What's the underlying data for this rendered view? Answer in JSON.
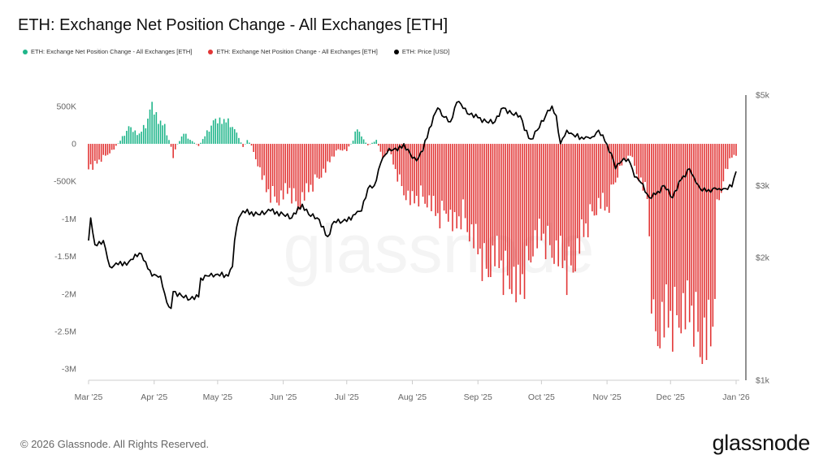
{
  "header": {
    "title": "ETH: Exchange Net Position Change - All Exchanges [ETH]"
  },
  "footer": {
    "copyright": "© 2026 Glassnode. All Rights Reserved.",
    "brand": "glassnode",
    "watermark": "glassnode"
  },
  "colors": {
    "positive": "#1fb58a",
    "negative": "#e23636",
    "price": "#000000",
    "axis": "#666666"
  },
  "chart_data": {
    "type": "bar",
    "title": "ETH: Exchange Net Position Change - All Exchanges [ETH]",
    "legend": [
      {
        "label": "ETH: Exchange Net Position Change - All Exchanges [ETH]",
        "color": "#1fb58a"
      },
      {
        "label": "ETH: Exchange Net Position Change - All Exchanges [ETH]",
        "color": "#e23636"
      },
      {
        "label": "ETH: Price [USD]",
        "color": "#000000"
      }
    ],
    "legend_position": "top-left",
    "x_range": [
      "2025-03-01",
      "2026-01-01"
    ],
    "x_ticks": [
      {
        "date": "2025-03-01",
        "label": "Mar '25"
      },
      {
        "date": "2025-04-01",
        "label": "Apr '25"
      },
      {
        "date": "2025-05-01",
        "label": "May '25"
      },
      {
        "date": "2025-06-01",
        "label": "Jun '25"
      },
      {
        "date": "2025-07-01",
        "label": "Jul '25"
      },
      {
        "date": "2025-08-01",
        "label": "Aug '25"
      },
      {
        "date": "2025-09-01",
        "label": "Sep '25"
      },
      {
        "date": "2025-10-01",
        "label": "Oct '25"
      },
      {
        "date": "2025-11-01",
        "label": "Nov '25"
      },
      {
        "date": "2025-12-01",
        "label": "Dec '25"
      },
      {
        "date": "2026-01-01",
        "label": "Jan '26"
      }
    ],
    "y_left": {
      "range": [
        -3150000,
        650000
      ],
      "ticks": [
        {
          "value": 500000,
          "label": "500K"
        },
        {
          "value": 0,
          "label": "0"
        },
        {
          "value": -500000,
          "label": "-500K"
        },
        {
          "value": -1000000,
          "label": "-1M"
        },
        {
          "value": -1500000,
          "label": "-1.5M"
        },
        {
          "value": -2000000,
          "label": "-2M"
        },
        {
          "value": -2500000,
          "label": "-2.5M"
        },
        {
          "value": -3000000,
          "label": "-3M"
        }
      ]
    },
    "y_right": {
      "scale": "log",
      "range": [
        1000,
        5000
      ],
      "ticks": [
        {
          "value": 5000,
          "label": "$5k"
        },
        {
          "value": 3000,
          "label": "$3k"
        },
        {
          "value": 2000,
          "label": "$2k"
        },
        {
          "value": 1000,
          "label": "$1k"
        }
      ]
    },
    "grid": false,
    "net_position_series": {
      "name": "ETH: Exchange Net Position Change - All Exchanges [ETH]",
      "keypoints": [
        [
          "2025-03-01",
          -340000
        ],
        [
          "2025-03-03",
          -360000
        ],
        [
          "2025-03-06",
          -250000
        ],
        [
          "2025-03-10",
          -150000
        ],
        [
          "2025-03-13",
          -80000
        ],
        [
          "2025-03-16",
          50000
        ],
        [
          "2025-03-20",
          240000
        ],
        [
          "2025-03-25",
          150000
        ],
        [
          "2025-03-28",
          280000
        ],
        [
          "2025-03-31",
          560000
        ],
        [
          "2025-04-03",
          380000
        ],
        [
          "2025-04-06",
          250000
        ],
        [
          "2025-04-09",
          -40000
        ],
        [
          "2025-04-10",
          -190000
        ],
        [
          "2025-04-12",
          0
        ],
        [
          "2025-04-15",
          160000
        ],
        [
          "2025-04-18",
          60000
        ],
        [
          "2025-04-22",
          -30000
        ],
        [
          "2025-04-25",
          120000
        ],
        [
          "2025-04-29",
          320000
        ],
        [
          "2025-05-03",
          380000
        ],
        [
          "2025-05-07",
          300000
        ],
        [
          "2025-05-11",
          100000
        ],
        [
          "2025-05-13",
          -60000
        ],
        [
          "2025-05-15",
          60000
        ],
        [
          "2025-05-17",
          -30000
        ],
        [
          "2025-05-20",
          -300000
        ],
        [
          "2025-05-24",
          -700000
        ],
        [
          "2025-05-30",
          -820000
        ],
        [
          "2025-06-04",
          -700000
        ],
        [
          "2025-06-08",
          -900000
        ],
        [
          "2025-06-12",
          -750000
        ],
        [
          "2025-06-17",
          -500000
        ],
        [
          "2025-06-21",
          -400000
        ],
        [
          "2025-06-24",
          -200000
        ],
        [
          "2025-06-27",
          -80000
        ],
        [
          "2025-07-01",
          -100000
        ],
        [
          "2025-07-04",
          50000
        ],
        [
          "2025-07-06",
          260000
        ],
        [
          "2025-07-08",
          100000
        ],
        [
          "2025-07-11",
          -20000
        ],
        [
          "2025-07-15",
          50000
        ],
        [
          "2025-07-18",
          -200000
        ],
        [
          "2025-07-21",
          -100000
        ],
        [
          "2025-07-24",
          -400000
        ],
        [
          "2025-07-28",
          -700000
        ],
        [
          "2025-08-01",
          -900000
        ],
        [
          "2025-08-05",
          -750000
        ],
        [
          "2025-08-09",
          -880000
        ],
        [
          "2025-08-13",
          -1100000
        ],
        [
          "2025-08-17",
          -950000
        ],
        [
          "2025-08-21",
          -1300000
        ],
        [
          "2025-08-25",
          -1000000
        ],
        [
          "2025-08-28",
          -1300000
        ],
        [
          "2025-09-01",
          -1600000
        ],
        [
          "2025-09-05",
          -1850000
        ],
        [
          "2025-09-09",
          -1700000
        ],
        [
          "2025-09-13",
          -1900000
        ],
        [
          "2025-09-17",
          -2000000
        ],
        [
          "2025-09-20",
          -2300000
        ],
        [
          "2025-09-23",
          -1950000
        ],
        [
          "2025-09-27",
          -1500000
        ],
        [
          "2025-10-01",
          -1400000
        ],
        [
          "2025-10-05",
          -1500000
        ],
        [
          "2025-10-09",
          -1700000
        ],
        [
          "2025-10-13",
          -1900000
        ],
        [
          "2025-10-17",
          -1700000
        ],
        [
          "2025-10-21",
          -1350000
        ],
        [
          "2025-10-25",
          -1000000
        ],
        [
          "2025-10-29",
          -900000
        ],
        [
          "2025-11-01",
          -1000000
        ],
        [
          "2025-11-04",
          -600000
        ],
        [
          "2025-11-08",
          -300000
        ],
        [
          "2025-11-12",
          -150000
        ],
        [
          "2025-11-16",
          -500000
        ],
        [
          "2025-11-20",
          -800000
        ],
        [
          "2025-11-23",
          -2800000
        ],
        [
          "2025-11-27",
          -2700000
        ],
        [
          "2025-12-01",
          -2650000
        ],
        [
          "2025-12-05",
          -2500000
        ],
        [
          "2025-12-09",
          -2600000
        ],
        [
          "2025-12-12",
          -2550000
        ],
        [
          "2025-12-15",
          -2900000
        ],
        [
          "2025-12-18",
          -3000000
        ],
        [
          "2025-12-21",
          -2900000
        ],
        [
          "2025-12-23",
          -1000000
        ],
        [
          "2025-12-26",
          -500000
        ],
        [
          "2025-12-30",
          -200000
        ],
        [
          "2026-01-01",
          -150000
        ]
      ]
    },
    "price_series": {
      "name": "ETH: Price [USD]",
      "keypoints": [
        [
          "2025-03-01",
          2200
        ],
        [
          "2025-03-02",
          2500
        ],
        [
          "2025-03-04",
          2150
        ],
        [
          "2025-03-08",
          2200
        ],
        [
          "2025-03-11",
          1900
        ],
        [
          "2025-03-15",
          1920
        ],
        [
          "2025-03-20",
          1950
        ],
        [
          "2025-03-25",
          2050
        ],
        [
          "2025-03-28",
          1950
        ],
        [
          "2025-03-31",
          1800
        ],
        [
          "2025-04-04",
          1800
        ],
        [
          "2025-04-07",
          1550
        ],
        [
          "2025-04-09",
          1500
        ],
        [
          "2025-04-10",
          1650
        ],
        [
          "2025-04-14",
          1610
        ],
        [
          "2025-04-18",
          1580
        ],
        [
          "2025-04-22",
          1600
        ],
        [
          "2025-04-23",
          1780
        ],
        [
          "2025-04-27",
          1800
        ],
        [
          "2025-05-01",
          1820
        ],
        [
          "2025-05-06",
          1800
        ],
        [
          "2025-05-08",
          1900
        ],
        [
          "2025-05-09",
          2200
        ],
        [
          "2025-05-11",
          2500
        ],
        [
          "2025-05-13",
          2600
        ],
        [
          "2025-05-20",
          2550
        ],
        [
          "2025-05-26",
          2600
        ],
        [
          "2025-06-01",
          2550
        ],
        [
          "2025-06-05",
          2500
        ],
        [
          "2025-06-10",
          2700
        ],
        [
          "2025-06-13",
          2550
        ],
        [
          "2025-06-17",
          2500
        ],
        [
          "2025-06-22",
          2250
        ],
        [
          "2025-06-25",
          2450
        ],
        [
          "2025-07-01",
          2450
        ],
        [
          "2025-07-05",
          2550
        ],
        [
          "2025-07-08",
          2600
        ],
        [
          "2025-07-11",
          2950
        ],
        [
          "2025-07-14",
          3000
        ],
        [
          "2025-07-17",
          3400
        ],
        [
          "2025-07-21",
          3700
        ],
        [
          "2025-07-25",
          3650
        ],
        [
          "2025-07-28",
          3800
        ],
        [
          "2025-08-01",
          3500
        ],
        [
          "2025-08-03",
          3450
        ],
        [
          "2025-08-06",
          3650
        ],
        [
          "2025-08-09",
          4150
        ],
        [
          "2025-08-13",
          4650
        ],
        [
          "2025-08-15",
          4450
        ],
        [
          "2025-08-19",
          4300
        ],
        [
          "2025-08-22",
          4800
        ],
        [
          "2025-08-24",
          4750
        ],
        [
          "2025-08-27",
          4500
        ],
        [
          "2025-09-01",
          4400
        ],
        [
          "2025-09-05",
          4300
        ],
        [
          "2025-09-09",
          4300
        ],
        [
          "2025-09-13",
          4650
        ],
        [
          "2025-09-17",
          4500
        ],
        [
          "2025-09-21",
          4450
        ],
        [
          "2025-09-23",
          4100
        ],
        [
          "2025-09-26",
          3900
        ],
        [
          "2025-09-29",
          4100
        ],
        [
          "2025-10-03",
          4450
        ],
        [
          "2025-10-06",
          4700
        ],
        [
          "2025-10-08",
          4450
        ],
        [
          "2025-10-10",
          3800
        ],
        [
          "2025-10-13",
          4100
        ],
        [
          "2025-10-16",
          4000
        ],
        [
          "2025-10-21",
          3900
        ],
        [
          "2025-10-25",
          3950
        ],
        [
          "2025-10-28",
          4100
        ],
        [
          "2025-10-31",
          3850
        ],
        [
          "2025-11-03",
          3600
        ],
        [
          "2025-11-05",
          3300
        ],
        [
          "2025-11-07",
          3400
        ],
        [
          "2025-11-09",
          3500
        ],
        [
          "2025-11-12",
          3400
        ],
        [
          "2025-11-14",
          3150
        ],
        [
          "2025-11-17",
          3050
        ],
        [
          "2025-11-21",
          2800
        ],
        [
          "2025-11-24",
          2850
        ],
        [
          "2025-11-28",
          3000
        ],
        [
          "2025-12-02",
          2800
        ],
        [
          "2025-12-06",
          3100
        ],
        [
          "2025-12-10",
          3300
        ],
        [
          "2025-12-12",
          3150
        ],
        [
          "2025-12-15",
          2950
        ],
        [
          "2025-12-18",
          2900
        ],
        [
          "2025-12-21",
          2950
        ],
        [
          "2025-12-24",
          2950
        ],
        [
          "2025-12-27",
          2950
        ],
        [
          "2025-12-30",
          2980
        ],
        [
          "2026-01-01",
          3250
        ]
      ]
    }
  }
}
